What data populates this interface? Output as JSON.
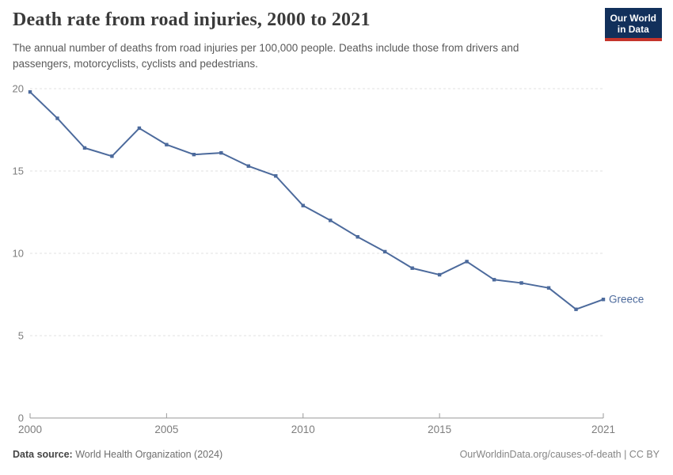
{
  "header": {
    "title": "Death rate from road injuries, 2000 to 2021",
    "subtitle": "The annual number of deaths from road injuries per 100,000 people. Deaths include those from drivers and passengers, motorcyclists, cyclists and pedestrians.",
    "logo": {
      "line1": "Our World",
      "line2": "in Data"
    }
  },
  "chart_data": {
    "type": "line",
    "title": "Death rate from road injuries, 2000 to 2021",
    "x": [
      2000,
      2001,
      2002,
      2003,
      2004,
      2005,
      2006,
      2007,
      2008,
      2009,
      2010,
      2011,
      2012,
      2013,
      2014,
      2015,
      2016,
      2017,
      2018,
      2019,
      2020,
      2021
    ],
    "series": [
      {
        "name": "Greece",
        "color": "#4C6A9C",
        "values": [
          19.8,
          18.2,
          16.4,
          15.9,
          17.6,
          16.6,
          16.0,
          16.1,
          15.3,
          14.7,
          12.9,
          12.0,
          11.0,
          10.1,
          9.1,
          8.7,
          9.5,
          8.4,
          8.2,
          7.9,
          6.6,
          7.2
        ]
      }
    ],
    "xlim": [
      2000,
      2021
    ],
    "ylim": [
      0,
      20
    ],
    "x_ticks": [
      2000,
      2005,
      2010,
      2015,
      2021
    ],
    "y_ticks": [
      0,
      5,
      10,
      15,
      20
    ],
    "grid": "horizontal-dashed",
    "legend_position": "end-of-line-label",
    "colors": {
      "line": "#4C6A9C",
      "gridline": "#e0e0e0",
      "axis": "#9a9a9a",
      "tick_label": "#7d7d7d"
    }
  },
  "footer": {
    "source_label": "Data source:",
    "source_value": "World Health Organization (2024)",
    "credit": "OurWorldinData.org/causes-of-death | CC BY"
  }
}
